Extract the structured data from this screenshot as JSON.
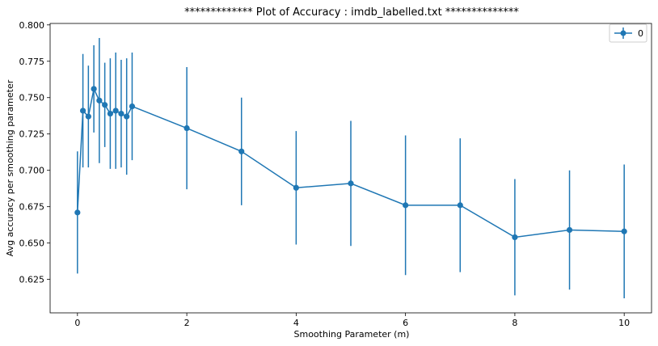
{
  "chart_data": {
    "type": "line",
    "title": "************* Plot of Accuracy : imdb_labelled.txt **************",
    "xlabel": "Smoothing Parameter (m)",
    "ylabel": "Avg accuracy per smoothing parameter",
    "xlim": [
      -0.5,
      10.5
    ],
    "ylim": [
      0.602,
      0.801
    ],
    "xticks": [
      0,
      2,
      4,
      6,
      8,
      10
    ],
    "xtick_labels": [
      "0",
      "2",
      "4",
      "6",
      "8",
      "10"
    ],
    "yticks": [
      0.625,
      0.65,
      0.675,
      0.7,
      0.725,
      0.75,
      0.775,
      0.8
    ],
    "ytick_labels": [
      "0.625",
      "0.650",
      "0.675",
      "0.700",
      "0.725",
      "0.750",
      "0.775",
      "0.800"
    ],
    "grid": false,
    "legend_position": "top-right",
    "series": [
      {
        "name": "0",
        "color": "#1f77b4",
        "x": [
          0,
          0.1,
          0.2,
          0.3,
          0.4,
          0.5,
          0.6,
          0.7,
          0.8,
          0.9,
          1,
          2,
          3,
          4,
          5,
          6,
          7,
          8,
          9,
          10
        ],
        "y": [
          0.671,
          0.741,
          0.737,
          0.756,
          0.748,
          0.745,
          0.739,
          0.741,
          0.739,
          0.737,
          0.744,
          0.729,
          0.713,
          0.688,
          0.691,
          0.676,
          0.676,
          0.654,
          0.659,
          0.658
        ],
        "err": [
          0.042,
          0.039,
          0.035,
          0.03,
          0.043,
          0.029,
          0.038,
          0.04,
          0.037,
          0.04,
          0.037,
          0.042,
          0.037,
          0.039,
          0.043,
          0.048,
          0.046,
          0.04,
          0.041,
          0.046
        ]
      }
    ]
  }
}
